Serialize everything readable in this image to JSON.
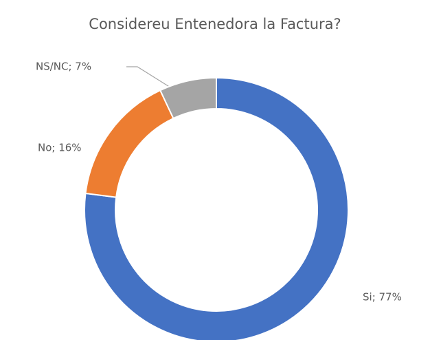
{
  "chart_data": {
    "type": "donut",
    "title": "Considereu Entenedora la Factura?",
    "categories": [
      "Si",
      "No",
      "NS/NC"
    ],
    "values": [
      77,
      16,
      7
    ],
    "value_labels": [
      "Si; 77%",
      "No; 16%",
      "NS/NC; 7%"
    ],
    "colors": [
      "#4472c4",
      "#ed7d31",
      "#a5a5a5"
    ]
  }
}
